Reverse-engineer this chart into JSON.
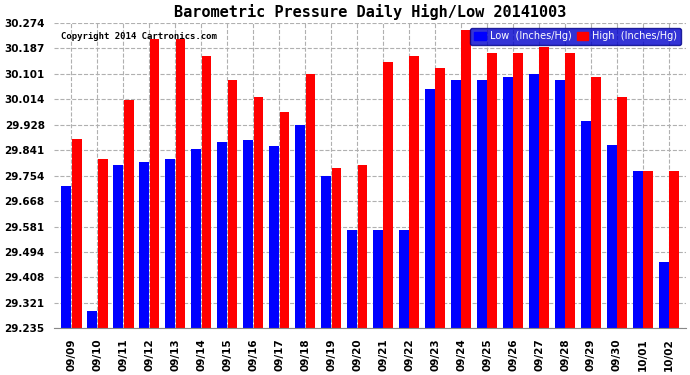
{
  "title": "Barometric Pressure Daily High/Low 20141003",
  "copyright": "Copyright 2014 Cartronics.com",
  "background_color": "#ffffff",
  "plot_bg_color": "#ffffff",
  "bar_color_low": "#0000ff",
  "bar_color_high": "#ff0000",
  "legend_low": "Low  (Inches/Hg)",
  "legend_high": "High  (Inches/Hg)",
  "grid_color": "#b0b0b0",
  "ylim_min": 29.235,
  "ylim_max": 30.274,
  "yticks": [
    29.235,
    29.321,
    29.408,
    29.494,
    29.581,
    29.668,
    29.754,
    29.841,
    29.928,
    30.014,
    30.101,
    30.187,
    30.274
  ],
  "dates": [
    "09/09",
    "09/10",
    "09/11",
    "09/12",
    "09/13",
    "09/14",
    "09/15",
    "09/16",
    "09/17",
    "09/18",
    "09/19",
    "09/20",
    "09/21",
    "09/22",
    "09/23",
    "09/24",
    "09/25",
    "09/26",
    "09/27",
    "09/28",
    "09/29",
    "09/30",
    "10/01",
    "10/02"
  ],
  "low_values": [
    29.72,
    29.295,
    29.79,
    29.8,
    29.81,
    29.845,
    29.87,
    29.875,
    29.855,
    29.925,
    29.754,
    29.57,
    29.57,
    29.57,
    30.05,
    30.08,
    30.08,
    30.09,
    30.1,
    30.08,
    29.94,
    29.86,
    29.77,
    29.46
  ],
  "high_values": [
    29.88,
    29.81,
    30.01,
    30.22,
    30.22,
    30.16,
    30.08,
    30.02,
    29.97,
    30.1,
    29.78,
    29.79,
    30.14,
    30.16,
    30.12,
    30.25,
    30.17,
    30.17,
    30.19,
    30.17,
    30.09,
    30.02,
    29.77,
    29.77
  ],
  "title_fontsize": 11,
  "tick_fontsize": 7.5,
  "copyright_fontsize": 6.5,
  "legend_fontsize": 7
}
